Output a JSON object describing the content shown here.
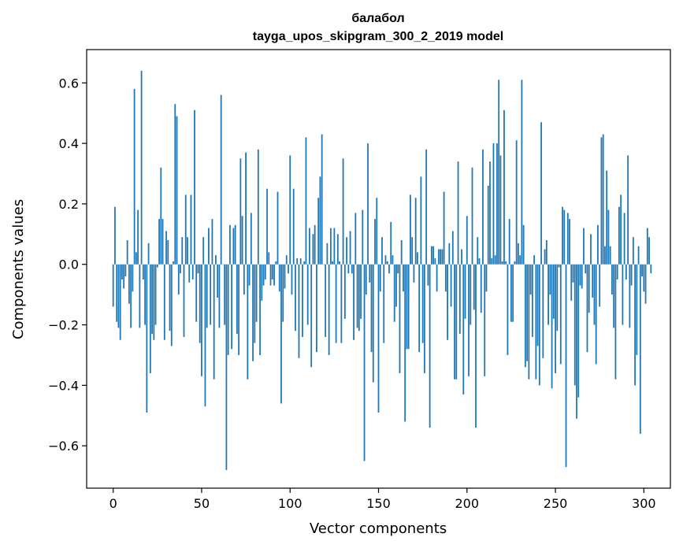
{
  "chart_data": {
    "type": "bar",
    "title": "балабол",
    "subtitle": "tayga_upos_skipgram_300_2_2019 model",
    "xlabel": "Vector components",
    "ylabel": "Components values",
    "xlim": [
      -15,
      315
    ],
    "ylim": [
      -0.74,
      0.71
    ],
    "xticks": [
      0,
      50,
      100,
      150,
      200,
      250,
      300
    ],
    "yticks": [
      -0.6,
      -0.4,
      -0.2,
      0.0,
      0.2,
      0.4,
      0.6
    ],
    "ytick_labels": [
      "−0.6",
      "−0.4",
      "−0.2",
      "0.0",
      "0.2",
      "0.4",
      "0.6"
    ],
    "bar_color": "#1f77b4",
    "grid": false,
    "legend": "none",
    "x_start": 0,
    "values": [
      -0.14,
      0.19,
      -0.19,
      -0.21,
      -0.25,
      -0.05,
      -0.08,
      -0.04,
      0.08,
      -0.13,
      -0.21,
      -0.09,
      0.58,
      0.04,
      0.18,
      -0.21,
      0.64,
      -0.05,
      -0.2,
      -0.49,
      0.07,
      -0.36,
      -0.23,
      -0.25,
      -0.2,
      -0.01,
      0.15,
      0.32,
      0.15,
      -0.25,
      0.11,
      0.08,
      -0.22,
      -0.27,
      0.01,
      0.53,
      0.49,
      -0.1,
      -0.03,
      0.09,
      -0.24,
      0.23,
      0.09,
      -0.06,
      0.23,
      -0.05,
      0.51,
      -0.19,
      -0.03,
      -0.26,
      -0.37,
      0.09,
      -0.47,
      -0.21,
      0.12,
      -0.2,
      0.15,
      -0.38,
      0.03,
      -0.11,
      -0.21,
      0.56,
      0.0,
      -0.2,
      -0.68,
      -0.3,
      0.13,
      -0.28,
      0.12,
      0.13,
      -0.23,
      -0.3,
      0.35,
      0.16,
      -0.1,
      0.37,
      -0.38,
      -0.07,
      0.17,
      -0.32,
      -0.26,
      -0.19,
      0.38,
      -0.3,
      -0.12,
      -0.07,
      -0.05,
      0.25,
      0.04,
      -0.07,
      -0.05,
      -0.07,
      0.01,
      0.24,
      -0.09,
      -0.46,
      -0.19,
      -0.08,
      0.03,
      -0.03,
      0.36,
      -0.1,
      0.25,
      -0.22,
      0.02,
      -0.31,
      0.02,
      -0.24,
      0.01,
      0.42,
      -0.2,
      0.12,
      -0.34,
      0.1,
      0.13,
      -0.29,
      0.22,
      0.29,
      0.43,
      0.0,
      -0.24,
      0.07,
      -0.3,
      0.12,
      0.01,
      0.12,
      -0.26,
      0.1,
      0.01,
      -0.26,
      0.35,
      -0.18,
      0.09,
      -0.03,
      0.11,
      -0.03,
      -0.25,
      0.17,
      -0.21,
      -0.22,
      -0.18,
      0.18,
      -0.65,
      -0.1,
      0.4,
      -0.06,
      -0.29,
      -0.39,
      0.15,
      0.22,
      -0.49,
      -0.09,
      0.09,
      -0.26,
      0.03,
      0.01,
      -0.03,
      0.14,
      0.03,
      -0.19,
      -0.14,
      -0.03,
      -0.36,
      0.08,
      -0.09,
      -0.52,
      -0.28,
      -0.28,
      0.23,
      0.09,
      -0.06,
      0.22,
      0.04,
      -0.29,
      0.29,
      -0.26,
      -0.36,
      0.38,
      -0.07,
      -0.54,
      0.06,
      0.06,
      0.02,
      -0.09,
      0.05,
      0.05,
      0.05,
      0.24,
      -0.09,
      -0.25,
      0.07,
      -0.14,
      0.11,
      -0.38,
      -0.38,
      0.34,
      -0.23,
      0.05,
      -0.43,
      -0.18,
      0.16,
      -0.37,
      -0.2,
      0.32,
      -0.15,
      -0.54,
      0.09,
      0.02,
      -0.16,
      0.38,
      -0.37,
      -0.09,
      0.26,
      0.34,
      0.02,
      0.4,
      0.03,
      0.4,
      0.61,
      0.36,
      0.01,
      0.51,
      0.01,
      -0.3,
      0.15,
      -0.19,
      -0.19,
      0.01,
      0.41,
      0.07,
      0.03,
      0.61,
      0.13,
      -0.34,
      -0.32,
      -0.38,
      -0.1,
      -0.24,
      0.03,
      -0.38,
      -0.27,
      -0.4,
      0.47,
      -0.31,
      0.05,
      0.08,
      -0.2,
      -0.1,
      -0.41,
      -0.18,
      -0.36,
      -0.22,
      -0.01,
      -0.33,
      0.19,
      0.18,
      -0.67,
      0.17,
      0.15,
      -0.12,
      -0.06,
      -0.4,
      -0.51,
      -0.44,
      -0.07,
      -0.08,
      0.12,
      -0.03,
      -0.29,
      -0.16,
      0.1,
      -0.11,
      -0.2,
      -0.33,
      0.13,
      -0.14,
      0.42,
      0.43,
      0.06,
      0.31,
      0.18,
      0.06,
      -0.1,
      -0.21,
      -0.38,
      -0.05,
      0.19,
      0.23,
      -0.2,
      0.17,
      -0.05,
      0.36,
      -0.21,
      -0.07,
      0.09,
      -0.4,
      -0.3,
      0.06,
      -0.56,
      -0.04,
      -0.09,
      -0.13,
      0.12,
      0.09,
      -0.03
    ]
  }
}
